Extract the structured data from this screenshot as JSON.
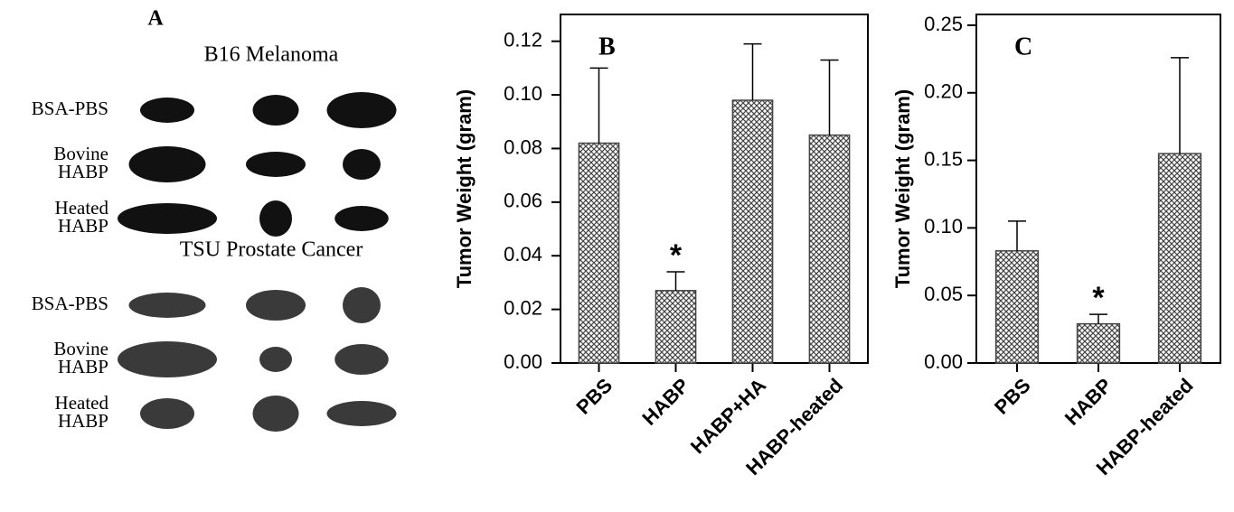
{
  "panel_a": {
    "panel": "A",
    "sections": [
      {
        "title": "B16 Melanoma",
        "rows": [
          [
            "BSA-PBS"
          ],
          [
            "Bovine",
            "HABP"
          ],
          [
            "Heated",
            "HABP"
          ]
        ]
      },
      {
        "title": "TSU Prostate Cancer",
        "rows": [
          [
            "BSA-PBS"
          ],
          [
            "Bovine",
            "HABP"
          ],
          [
            "Heated",
            "HABP"
          ]
        ]
      }
    ]
  },
  "chart_data": [
    {
      "type": "bar",
      "panel": "B",
      "y_label": "Tumor Weight (gram)",
      "categories": [
        "PBS",
        "HABP",
        "HABP+HA",
        "HABP-heated"
      ],
      "values": [
        0.082,
        0.027,
        0.098,
        0.085
      ],
      "errors": [
        0.028,
        0.007,
        0.021,
        0.028
      ],
      "annotations": [
        {
          "text": "*",
          "category": "HABP"
        }
      ],
      "color": "#444444",
      "ylim": [
        0,
        0.13
      ],
      "yticks": [
        {
          "value": 0,
          "label": "0.00"
        },
        0.02,
        0.04,
        0.06,
        0.08,
        {
          "value": 0.1,
          "label": "0.10"
        },
        0.12
      ]
    },
    {
      "type": "bar",
      "panel": "C",
      "y_label": "Tumor Weight (gram)",
      "categories": [
        "PBS",
        "HABP",
        "HABP-heated"
      ],
      "values": [
        0.083,
        0.029,
        0.155
      ],
      "errors": [
        0.022,
        0.007,
        0.071
      ],
      "annotations": [
        {
          "text": "*",
          "category": "HABP"
        }
      ],
      "color": "#444444",
      "ylim": [
        0,
        0.258
      ],
      "yticks": [
        {
          "value": 0,
          "label": "0.00"
        },
        0.05,
        {
          "value": 0.1,
          "label": "0.10"
        },
        0.15,
        {
          "value": 0.2,
          "label": "0.20"
        },
        0.25
      ]
    }
  ]
}
